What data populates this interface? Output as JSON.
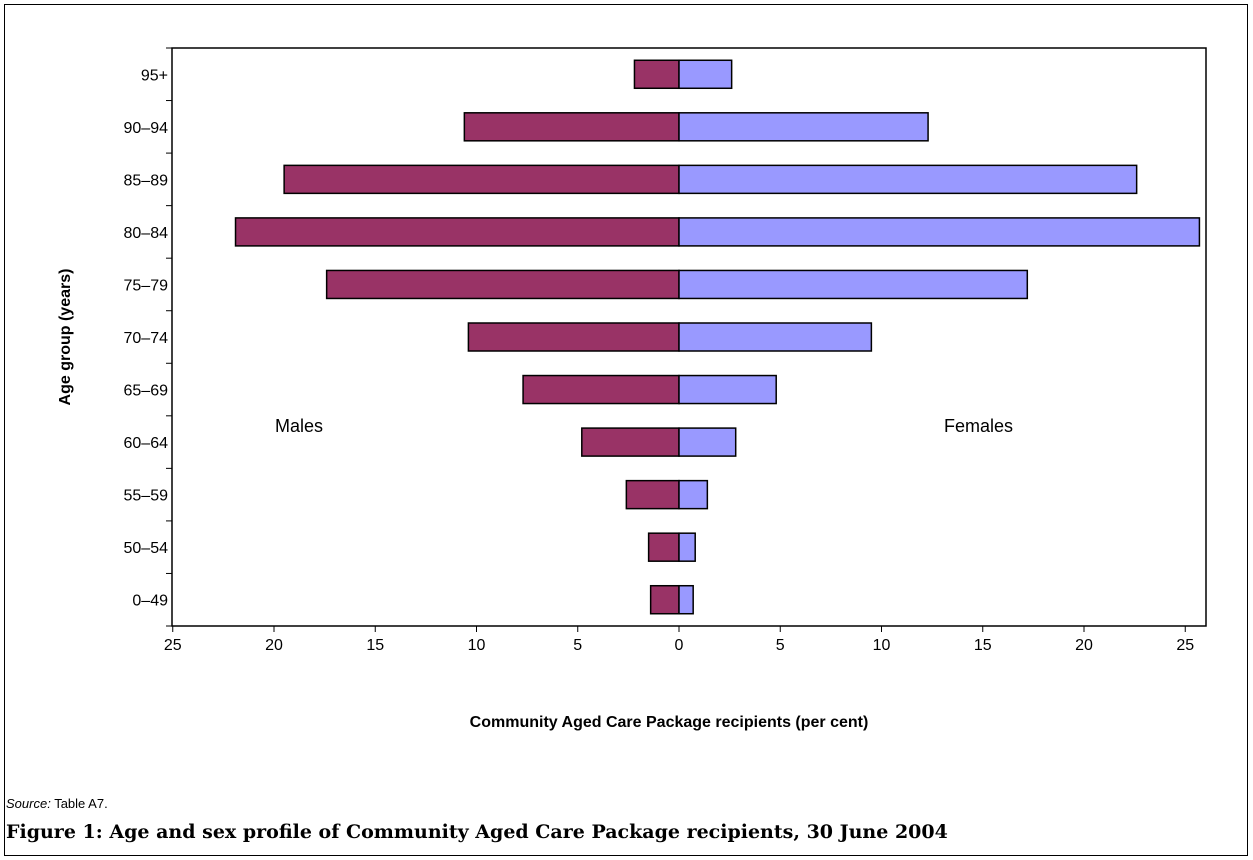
{
  "chart_data": {
    "type": "bar",
    "orientation": "horizontal",
    "categories": [
      "0–49",
      "50–54",
      "55–59",
      "60–64",
      "65–69",
      "70–74",
      "75–79",
      "80–84",
      "85–89",
      "90–94",
      "95+"
    ],
    "series": [
      {
        "name": "Males",
        "values": [
          1.4,
          1.5,
          2.6,
          4.8,
          7.7,
          10.4,
          17.4,
          21.9,
          19.5,
          10.6,
          2.2
        ]
      },
      {
        "name": "Females",
        "values": [
          0.7,
          0.8,
          1.4,
          2.8,
          4.8,
          9.5,
          17.2,
          25.7,
          22.6,
          12.3,
          2.6
        ]
      }
    ],
    "ylabel": "Age group (years)",
    "xlabel": "Community Aged Care Package recipients (per cent)",
    "xlim": [
      -25,
      25
    ],
    "xticks": [
      25,
      20,
      15,
      10,
      5,
      0,
      5,
      10,
      15,
      20,
      25
    ],
    "grid": false,
    "legend": "none",
    "colors": {
      "Males": "#993366",
      "Females": "#9999ff"
    }
  },
  "source": {
    "label": "Source:",
    "text": "Table A7."
  },
  "caption": "Figure 1: Age and sex profile of Community Aged Care Package recipients, 30 June 2004"
}
